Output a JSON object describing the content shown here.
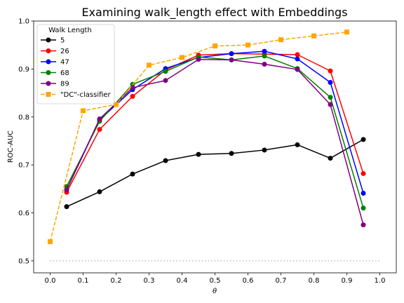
{
  "chart_data": {
    "type": "line",
    "title": "Examining walk_length effect with Embeddings",
    "xlabel": "θ",
    "ylabel": "ROC-AUC",
    "xlim": [
      -0.05,
      1.05
    ],
    "ylim": [
      0.475,
      1.0
    ],
    "xticks": [
      0.0,
      0.1,
      0.2,
      0.3,
      0.4,
      0.5,
      0.6,
      0.7,
      0.8,
      0.9,
      1.0
    ],
    "xtick_labels": [
      "0.0",
      "0.1",
      "0.2",
      "0.3",
      "0.4",
      "0.5",
      "0.6",
      "0.7",
      "0.8",
      "0.9",
      "1.0"
    ],
    "yticks": [
      0.5,
      0.6,
      0.7,
      0.8,
      0.9,
      1.0
    ],
    "ytick_labels": [
      "0.5",
      "0.6",
      "0.7",
      "0.8",
      "0.9",
      "1.0"
    ],
    "grid": false,
    "legend": {
      "title": "Walk Length",
      "placement": "upper-left"
    },
    "baseline": {
      "x": [
        0.0,
        1.0
      ],
      "y": 0.5,
      "color": "#b0b0b0",
      "style": "dotted"
    },
    "series": [
      {
        "name": "5",
        "color": "#000000",
        "marker": "circle",
        "dashed": false,
        "x": [
          0.05,
          0.15,
          0.25,
          0.35,
          0.45,
          0.55,
          0.65,
          0.75,
          0.85,
          0.95
        ],
        "y": [
          0.613,
          0.644,
          0.681,
          0.709,
          0.722,
          0.724,
          0.731,
          0.742,
          0.714,
          0.753
        ]
      },
      {
        "name": "26",
        "color": "#ff0000",
        "marker": "circle",
        "dashed": false,
        "x": [
          0.05,
          0.15,
          0.25,
          0.35,
          0.45,
          0.55,
          0.65,
          0.75,
          0.85,
          0.95
        ],
        "y": [
          0.643,
          0.774,
          0.843,
          0.898,
          0.929,
          0.932,
          0.931,
          0.93,
          0.896,
          0.682
        ]
      },
      {
        "name": "47",
        "color": "#0000ff",
        "marker": "circle",
        "dashed": false,
        "x": [
          0.05,
          0.15,
          0.25,
          0.35,
          0.45,
          0.55,
          0.65,
          0.75,
          0.85,
          0.95
        ],
        "y": [
          0.648,
          0.794,
          0.857,
          0.901,
          0.924,
          0.932,
          0.937,
          0.921,
          0.872,
          0.641
        ]
      },
      {
        "name": "68",
        "color": "#008000",
        "marker": "circle",
        "dashed": false,
        "x": [
          0.05,
          0.15,
          0.25,
          0.35,
          0.45,
          0.55,
          0.65,
          0.75,
          0.85,
          0.95
        ],
        "y": [
          0.655,
          0.791,
          0.868,
          0.895,
          0.925,
          0.919,
          0.927,
          0.901,
          0.841,
          0.61
        ]
      },
      {
        "name": "89",
        "color": "#800080",
        "marker": "circle",
        "dashed": false,
        "x": [
          0.05,
          0.15,
          0.25,
          0.35,
          0.45,
          0.55,
          0.65,
          0.75,
          0.85,
          0.95
        ],
        "y": [
          0.648,
          0.796,
          0.861,
          0.876,
          0.92,
          0.919,
          0.91,
          0.899,
          0.826,
          0.575
        ]
      },
      {
        "name": "\"DC\"-classifier",
        "color": "#ffa500",
        "marker": "square",
        "dashed": true,
        "x": [
          0.0,
          0.1,
          0.2,
          0.3,
          0.4,
          0.5,
          0.6,
          0.7,
          0.8,
          0.9
        ],
        "y": [
          0.54,
          0.813,
          0.826,
          0.908,
          0.924,
          0.948,
          0.95,
          0.961,
          0.969,
          0.977
        ]
      }
    ]
  }
}
